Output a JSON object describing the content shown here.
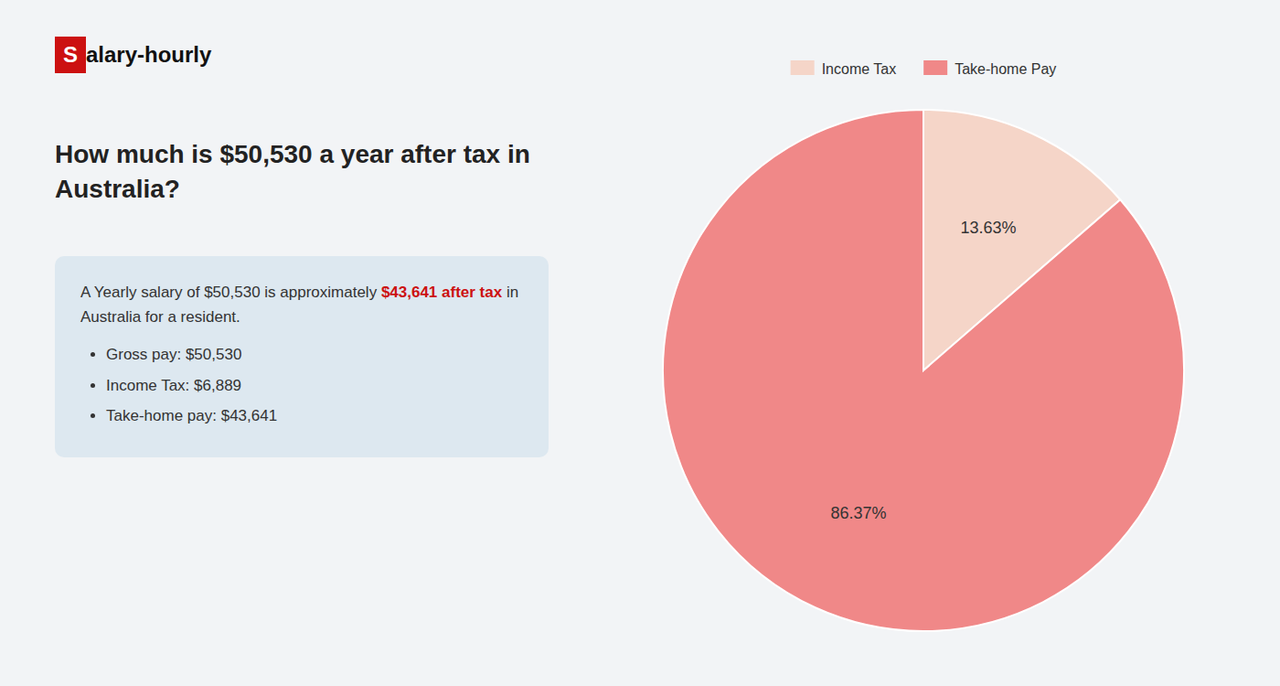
{
  "chart_data": {
    "type": "pie",
    "title": "How much is $50,530 a year after tax in\nAustralia?",
    "categories": [
      "Income Tax",
      "Take-home Pay"
    ],
    "values": [
      13.63,
      86.37
    ],
    "value_labels": [
      "13.63%",
      "86.37%"
    ],
    "colors": [
      "#f5d5c8",
      "#f08888"
    ],
    "data_labels": true,
    "legend": "top",
    "annotations": [
      {
        "text": "S"
      },
      {
        "text": "alary-hourly"
      },
      {
        "text": "A Yearly salary of $50,530 is approximately "
      },
      {
        "text": "$43,641 after tax",
        "color": "#cc1111"
      },
      {
        "text": " in"
      },
      {
        "text": "Australia for a resident."
      },
      {
        "text": "Gross pay: $50,530"
      },
      {
        "text": "Income Tax: $6,889"
      },
      {
        "text": "Take-home pay: $43,641"
      }
    ]
  }
}
